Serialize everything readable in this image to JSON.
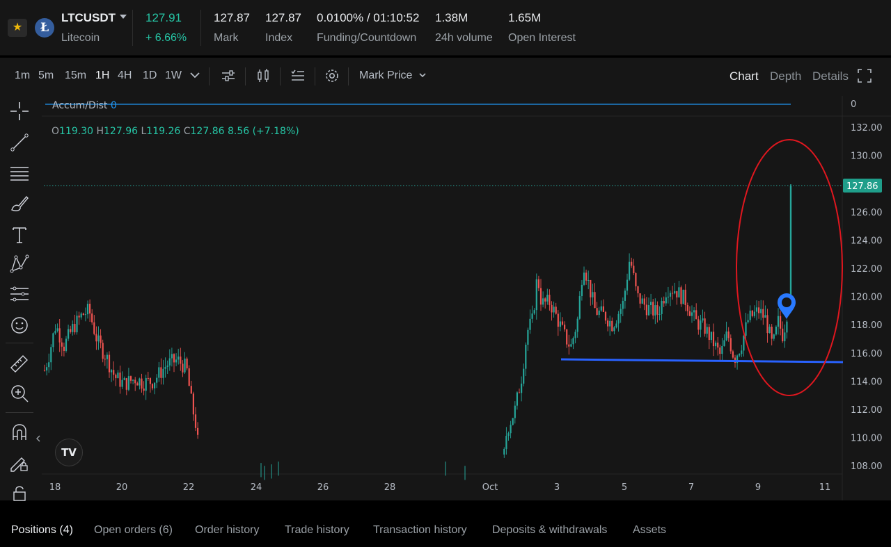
{
  "ticker": {
    "symbol": "LTCUSDT",
    "name": "Litecoin",
    "price": "127.91",
    "change": "+ 6.66%",
    "stats": [
      {
        "value": "127.87",
        "label": "Mark"
      },
      {
        "value": "127.87",
        "label": "Index"
      },
      {
        "value": "0.0100% / 01:10:52",
        "label": "Funding/Countdown"
      },
      {
        "value": "1.38M",
        "label": "24h volume"
      },
      {
        "value": "1.65M",
        "label": "Open Interest"
      }
    ]
  },
  "toolbar": {
    "timeframes": [
      "1m",
      "5m",
      "15m",
      "1H",
      "4H",
      "1D",
      "1W"
    ],
    "active_timeframe": "1H",
    "price_source": "Mark Price",
    "views": [
      "Chart",
      "Depth",
      "Details"
    ],
    "active_view": "Chart"
  },
  "indicator": {
    "label": "Accum/Dist",
    "value": "0",
    "scale_value": "0"
  },
  "ohlc": {
    "o_label": "O",
    "o": "119.30",
    "h_label": "H",
    "h": "127.96",
    "l_label": "L",
    "l": "119.26",
    "c_label": "C",
    "c": "127.86",
    "change": "8.56 (+7.18%)"
  },
  "chart_data": {
    "type": "candlestick",
    "last_price": 127.86,
    "y_axis_ticks": [
      132.0,
      130.0,
      128.0,
      126.0,
      124.0,
      122.0,
      120.0,
      118.0,
      116.0,
      114.0,
      112.0,
      110.0,
      108.0
    ],
    "y_axis_tick_labels": [
      "132.00",
      "130.00",
      "126.00",
      "124.00",
      "122.00",
      "120.00",
      "118.00",
      "116.00",
      "114.00",
      "112.00",
      "110.00",
      "108.00"
    ],
    "x_axis_labels": [
      "18",
      "20",
      "22",
      "24",
      "26",
      "28",
      "Oct",
      "3",
      "5",
      "7",
      "9",
      "11"
    ],
    "support_line_price": 115.5,
    "annotation": "red ellipse around latest breakout candle",
    "colors": {
      "up": "#26a69a",
      "down": "#ef5350",
      "support": "#2962ff",
      "ellipse": "#e0171f",
      "marker": "#2979ff"
    }
  },
  "left_tools": [
    "crosshair-icon",
    "trendline-icon",
    "horizontal-lines-icon",
    "brush-icon",
    "text-icon",
    "pattern-icon",
    "fib-icon",
    "emoji-icon",
    "ruler-icon",
    "zoom-in-icon",
    "magnet-icon",
    "lock-draw-icon",
    "lock-icon"
  ],
  "tabs": [
    {
      "label": "Positions (4)",
      "active": true
    },
    {
      "label": "Open orders (6)"
    },
    {
      "label": "Order history"
    },
    {
      "label": "Trade history"
    },
    {
      "label": "Transaction history"
    },
    {
      "label": "Deposits & withdrawals"
    },
    {
      "label": "Assets"
    }
  ]
}
